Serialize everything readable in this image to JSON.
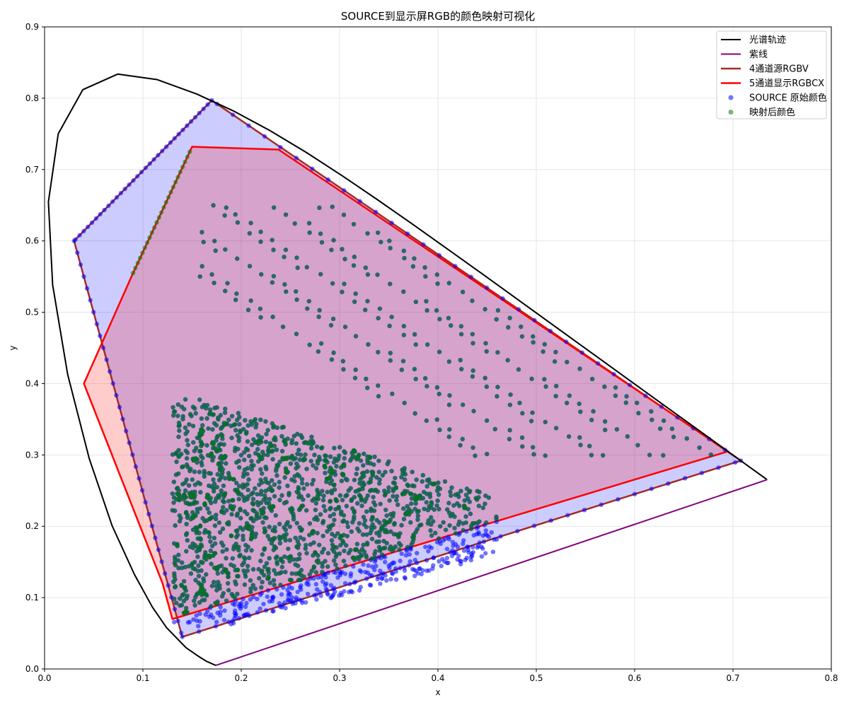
{
  "chart_data": {
    "type": "scatter",
    "title": "SOURCE到显示屏RGB的颜色映射可视化",
    "xlabel": "x",
    "ylabel": "y",
    "xlim": [
      0.0,
      0.8
    ],
    "ylim": [
      0.0,
      0.9
    ],
    "xticks": [
      "0.0",
      "0.1",
      "0.2",
      "0.3",
      "0.4",
      "0.5",
      "0.6",
      "0.7",
      "0.8"
    ],
    "yticks": [
      "0.0",
      "0.1",
      "0.2",
      "0.3",
      "0.4",
      "0.5",
      "0.6",
      "0.7",
      "0.8",
      "0.9"
    ],
    "grid": true,
    "legend_position": "top-right",
    "lines": [
      {
        "name": "光谱轨迹",
        "color": "#000000",
        "points": [
          [
            0.1741,
            0.005
          ],
          [
            0.1644,
            0.0109
          ],
          [
            0.1566,
            0.0177
          ],
          [
            0.144,
            0.0297
          ],
          [
            0.1241,
            0.0578
          ],
          [
            0.1096,
            0.0868
          ],
          [
            0.0913,
            0.1327
          ],
          [
            0.0687,
            0.2007
          ],
          [
            0.0454,
            0.295
          ],
          [
            0.0235,
            0.4127
          ],
          [
            0.0082,
            0.5384
          ],
          [
            0.0039,
            0.6548
          ],
          [
            0.0139,
            0.7502
          ],
          [
            0.0389,
            0.812
          ],
          [
            0.0743,
            0.8338
          ],
          [
            0.1142,
            0.8262
          ],
          [
            0.1547,
            0.8059
          ],
          [
            0.1929,
            0.7816
          ],
          [
            0.2296,
            0.7543
          ],
          [
            0.2658,
            0.7243
          ],
          [
            0.3016,
            0.6923
          ],
          [
            0.3373,
            0.6589
          ],
          [
            0.3731,
            0.6245
          ],
          [
            0.4087,
            0.5896
          ],
          [
            0.4441,
            0.5547
          ],
          [
            0.4788,
            0.5202
          ],
          [
            0.5125,
            0.4866
          ],
          [
            0.5448,
            0.4544
          ],
          [
            0.5752,
            0.4242
          ],
          [
            0.6029,
            0.3965
          ],
          [
            0.627,
            0.3725
          ],
          [
            0.6482,
            0.3514
          ],
          [
            0.6658,
            0.334
          ],
          [
            0.6801,
            0.3197
          ],
          [
            0.6915,
            0.3083
          ],
          [
            0.7006,
            0.2993
          ],
          [
            0.7079,
            0.292
          ],
          [
            0.714,
            0.2859
          ],
          [
            0.719,
            0.2809
          ],
          [
            0.723,
            0.277
          ],
          [
            0.726,
            0.274
          ],
          [
            0.7283,
            0.2717
          ],
          [
            0.73,
            0.27
          ],
          [
            0.732,
            0.268
          ],
          [
            0.7347,
            0.2653
          ]
        ]
      },
      {
        "name": "紫线",
        "color": "#800080",
        "points": [
          [
            0.1741,
            0.005
          ],
          [
            0.7347,
            0.2653
          ]
        ]
      }
    ],
    "polygons": [
      {
        "name": "4通道源RGBV",
        "color": "#a52a2a",
        "fill": "#0000ff",
        "fill_opacity": 0.2,
        "points": [
          [
            0.708,
            0.292
          ],
          [
            0.17,
            0.797
          ],
          [
            0.03,
            0.6
          ],
          [
            0.14,
            0.045
          ]
        ]
      },
      {
        "name": "5通道显示RGBCX",
        "color": "#ff0000",
        "fill": "#ff0000",
        "fill_opacity": 0.2,
        "points": [
          [
            0.695,
            0.305
          ],
          [
            0.238,
            0.728
          ],
          [
            0.15,
            0.732
          ],
          [
            0.09,
            0.555
          ],
          [
            0.04,
            0.4
          ],
          [
            0.12,
            0.12
          ],
          [
            0.13,
            0.07
          ]
        ]
      }
    ],
    "scatter": [
      {
        "name": "SOURCE 原始颜色",
        "color": "#0000ff",
        "opacity": 0.55
      },
      {
        "name": "映射后颜色",
        "color": "#008000",
        "opacity": 0.55
      }
    ]
  }
}
